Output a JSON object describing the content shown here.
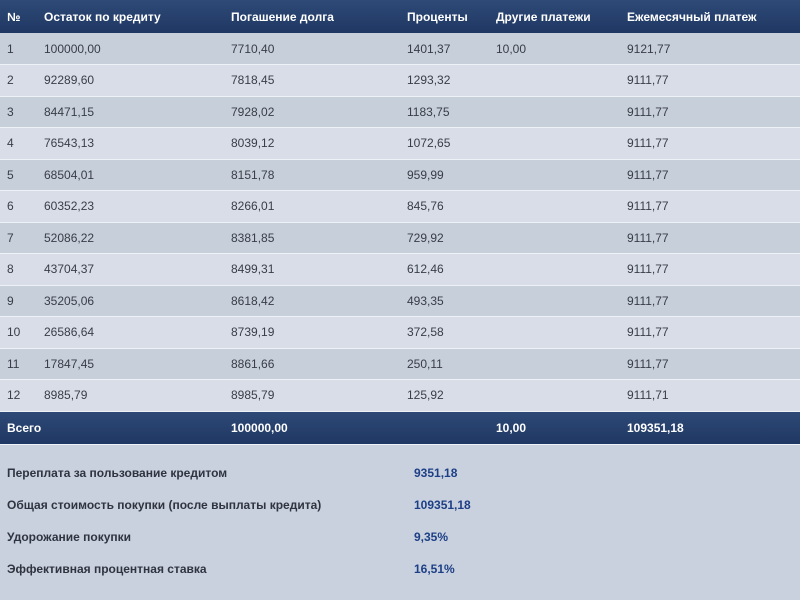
{
  "table": {
    "headers": [
      "№",
      "Остаток по кредиту",
      "Погашение долга",
      "Проценты",
      "Другие платежи",
      "Ежемесячный платеж"
    ],
    "rows": [
      [
        "1",
        "100000,00",
        "7710,40",
        "1401,37",
        "10,00",
        "9121,77"
      ],
      [
        "2",
        "92289,60",
        "7818,45",
        "1293,32",
        "",
        "9111,77"
      ],
      [
        "3",
        "84471,15",
        "7928,02",
        "1183,75",
        "",
        "9111,77"
      ],
      [
        "4",
        "76543,13",
        "8039,12",
        "1072,65",
        "",
        "9111,77"
      ],
      [
        "5",
        "68504,01",
        "8151,78",
        "959,99",
        "",
        "9111,77"
      ],
      [
        "6",
        "60352,23",
        "8266,01",
        "845,76",
        "",
        "9111,77"
      ],
      [
        "7",
        "52086,22",
        "8381,85",
        "729,92",
        "",
        "9111,77"
      ],
      [
        "8",
        "43704,37",
        "8499,31",
        "612,46",
        "",
        "9111,77"
      ],
      [
        "9",
        "35205,06",
        "8618,42",
        "493,35",
        "",
        "9111,77"
      ],
      [
        "10",
        "26586,64",
        "8739,19",
        "372,58",
        "",
        "9111,77"
      ],
      [
        "11",
        "17847,45",
        "8861,66",
        "250,11",
        "",
        "9111,77"
      ],
      [
        "12",
        "8985,79",
        "8985,79",
        "125,92",
        "",
        "9111,71"
      ]
    ],
    "total": {
      "label": "Всего",
      "principal": "100000,00",
      "interest": "",
      "other": "10,00",
      "monthly": "109351,18"
    }
  },
  "summary": [
    {
      "label": "Переплата за пользование кредитом",
      "value": "9351,18"
    },
    {
      "label": "Общая стоимость покупки (после выплаты кредита)",
      "value": "109351,18"
    },
    {
      "label": "Удорожание покупки",
      "value": "9,35%"
    },
    {
      "label": "Эффективная процентная ставка",
      "value": "16,51%"
    }
  ],
  "colors": {
    "header_bg": "#26416e",
    "row_odd": "#c7cfdb",
    "row_even": "#d8dde7",
    "value_text": "#1d3f86"
  }
}
